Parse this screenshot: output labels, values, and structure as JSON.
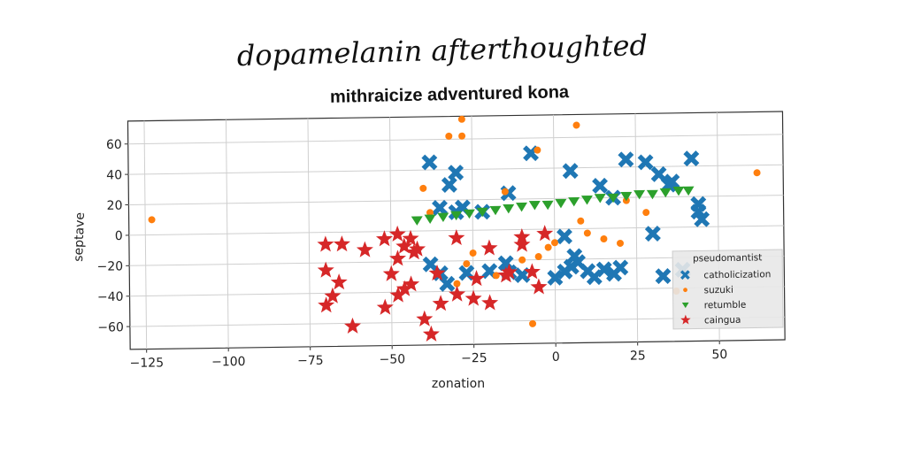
{
  "chart_data": {
    "type": "scatter",
    "suptitle": "dopamelanin afterthoughted",
    "title": "mithraicize adventured kona",
    "xlabel": "zonation",
    "ylabel": "septave",
    "xlim": [
      -130,
      70
    ],
    "ylim": [
      -75,
      75
    ],
    "xticks": [
      -125,
      -100,
      -75,
      -50,
      -25,
      0,
      25,
      50
    ],
    "xtick_labels": [
      "−125",
      "−100",
      "−75",
      "−50",
      "−25",
      "0",
      "25",
      "50"
    ],
    "yticks": [
      -60,
      -40,
      -20,
      0,
      20,
      40,
      60
    ],
    "ytick_labels": [
      "−60",
      "−40",
      "−20",
      "0",
      "20",
      "40",
      "60"
    ],
    "grid": true,
    "legend": {
      "title": "pseudomantist",
      "position": "lower-right"
    },
    "colors": {
      "catholicization": "#1f77b4",
      "suzuki": "#ff7f0e",
      "retumble": "#2ca02c",
      "caingua": "#d62728"
    },
    "series": [
      {
        "name": "catholicization",
        "marker": "x-thick",
        "points": [
          [
            -38,
            45
          ],
          [
            -30,
            38
          ],
          [
            -32,
            30
          ],
          [
            -28,
            15
          ],
          [
            -35,
            15
          ],
          [
            -30,
            12
          ],
          [
            -22,
            12
          ],
          [
            -14,
            24
          ],
          [
            -38,
            -22
          ],
          [
            -35,
            -28
          ],
          [
            -33,
            -35
          ],
          [
            -27,
            -28
          ],
          [
            -20,
            -27
          ],
          [
            -15,
            -22
          ],
          [
            -14,
            -28
          ],
          [
            -10,
            -30
          ],
          [
            -7,
            50
          ],
          [
            3,
            -5
          ],
          [
            6,
            -18
          ],
          [
            7,
            -22
          ],
          [
            3,
            -28
          ],
          [
            0,
            -32
          ],
          [
            5,
            -25
          ],
          [
            10,
            -28
          ],
          [
            12,
            -32
          ],
          [
            15,
            -27
          ],
          [
            18,
            -30
          ],
          [
            20,
            -26
          ],
          [
            5,
            38
          ],
          [
            14,
            28
          ],
          [
            18,
            20
          ],
          [
            22,
            45
          ],
          [
            28,
            43
          ],
          [
            32,
            35
          ],
          [
            35,
            28
          ],
          [
            36,
            30
          ],
          [
            42,
            45
          ],
          [
            44,
            15
          ],
          [
            44,
            10
          ],
          [
            45,
            5
          ],
          [
            30,
            -4
          ],
          [
            39,
            -28
          ],
          [
            33,
            -32
          ]
        ]
      },
      {
        "name": "suzuki",
        "marker": "circle",
        "points": [
          [
            -123,
            10
          ],
          [
            -28,
            73
          ],
          [
            -28,
            62
          ],
          [
            -32,
            62
          ],
          [
            -40,
            28
          ],
          [
            -38,
            12
          ],
          [
            -15,
            25
          ],
          [
            -5,
            52
          ],
          [
            7,
            68
          ],
          [
            20,
            -10
          ],
          [
            22,
            18
          ],
          [
            28,
            10
          ],
          [
            8,
            5
          ],
          [
            10,
            -3
          ],
          [
            15,
            -7
          ],
          [
            0,
            -9
          ],
          [
            -5,
            -18
          ],
          [
            -25,
            -15
          ],
          [
            -27,
            -22
          ],
          [
            -18,
            -30
          ],
          [
            -10,
            -20
          ],
          [
            -2,
            -12
          ],
          [
            -30,
            -35
          ],
          [
            -7,
            -62
          ],
          [
            37,
            -42
          ],
          [
            62,
            35
          ]
        ]
      },
      {
        "name": "retumble",
        "marker": "triangle-down",
        "points": [
          [
            -42,
            7
          ],
          [
            -38,
            8
          ],
          [
            -34,
            9
          ],
          [
            -30,
            10
          ],
          [
            -26,
            11
          ],
          [
            -22,
            12
          ],
          [
            -18,
            13
          ],
          [
            -14,
            14
          ],
          [
            -10,
            15
          ],
          [
            -6,
            16
          ],
          [
            -2,
            16
          ],
          [
            2,
            17
          ],
          [
            6,
            18
          ],
          [
            10,
            19
          ],
          [
            14,
            20
          ],
          [
            18,
            20
          ],
          [
            22,
            21
          ],
          [
            26,
            22
          ],
          [
            30,
            22
          ],
          [
            34,
            23
          ],
          [
            38,
            24
          ],
          [
            41,
            24
          ]
        ]
      },
      {
        "name": "caingua",
        "marker": "star",
        "points": [
          [
            -70,
            -8
          ],
          [
            -65,
            -8
          ],
          [
            -58,
            -12
          ],
          [
            -52,
            -5
          ],
          [
            -48,
            -2
          ],
          [
            -44,
            -5
          ],
          [
            -46,
            -10
          ],
          [
            -43,
            -14
          ],
          [
            -42,
            -12
          ],
          [
            -30,
            -5
          ],
          [
            -20,
            -12
          ],
          [
            -10,
            -10
          ],
          [
            -3,
            -3
          ],
          [
            -7,
            -28
          ],
          [
            -14,
            -28
          ],
          [
            -24,
            -32
          ],
          [
            -30,
            -42
          ],
          [
            -35,
            -48
          ],
          [
            -40,
            -58
          ],
          [
            -50,
            -28
          ],
          [
            -46,
            -38
          ],
          [
            -44,
            -35
          ],
          [
            -48,
            -42
          ],
          [
            -52,
            -50
          ],
          [
            -62,
            -62
          ],
          [
            -70,
            -25
          ],
          [
            -66,
            -33
          ],
          [
            -68,
            -42
          ],
          [
            -70,
            -48
          ],
          [
            -38,
            -68
          ],
          [
            -25,
            -45
          ],
          [
            -20,
            -48
          ],
          [
            -15,
            -30
          ],
          [
            -5,
            -38
          ],
          [
            -10,
            -5
          ],
          [
            -48,
            -18
          ],
          [
            -36,
            -28
          ]
        ]
      }
    ]
  }
}
